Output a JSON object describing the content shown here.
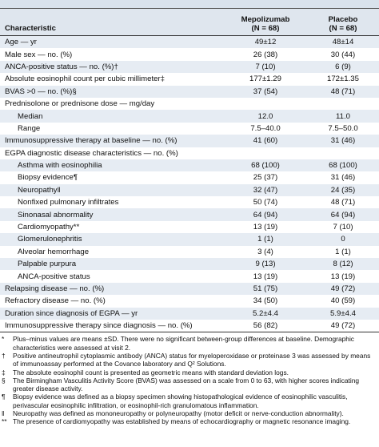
{
  "header": {
    "columns": [
      {
        "name": "Characteristic"
      },
      {
        "name": "Mepolizumab",
        "n": "(N = 68)"
      },
      {
        "name": "Placebo",
        "n": "(N = 68)"
      }
    ]
  },
  "rows": [
    {
      "label": "Age — yr",
      "values": [
        "49±12",
        "48±14"
      ]
    },
    {
      "label": "Male sex — no. (%)",
      "values": [
        "26 (38)",
        "30 (44)"
      ]
    },
    {
      "label": "ANCA-positive status — no. (%)†",
      "values": [
        "7 (10)",
        "6 (9)"
      ]
    },
    {
      "label": "Absolute eosinophil count per cubic millimeter‡",
      "values": [
        "177±1.29",
        "172±1.35"
      ]
    },
    {
      "label": "BVAS >0 — no. (%)§",
      "values": [
        "37 (54)",
        "48 (71)"
      ]
    },
    {
      "label": "Prednisolone or prednisone dose — mg/day",
      "items": [
        {
          "label": "Median",
          "values": [
            "12.0",
            "11.0"
          ]
        },
        {
          "label": "Range",
          "values": [
            "7.5–40.0",
            "7.5–50.0"
          ]
        }
      ]
    },
    {
      "label": "Immunosuppressive therapy at baseline — no. (%)",
      "values": [
        "41 (60)",
        "31 (46)"
      ]
    },
    {
      "label": "EGPA diagnostic disease characteristics — no. (%)",
      "items": [
        {
          "label": "Asthma with eosinophilia",
          "values": [
            "68 (100)",
            "68 (100)"
          ]
        },
        {
          "label": "Biopsy evidence¶",
          "values": [
            "25 (37)",
            "31 (46)"
          ]
        },
        {
          "label": "Neuropathy‖",
          "values": [
            "32 (47)",
            "24 (35)"
          ]
        },
        {
          "label": "Nonfixed pulmonary infiltrates",
          "values": [
            "50 (74)",
            "48 (71)"
          ]
        },
        {
          "label": "Sinonasal abnormality",
          "values": [
            "64 (94)",
            "64 (94)"
          ]
        },
        {
          "label": "Cardiomyopathy**",
          "values": [
            "13 (19)",
            "7 (10)"
          ]
        },
        {
          "label": "Glomerulonephritis",
          "values": [
            "1 (1)",
            "0"
          ]
        },
        {
          "label": "Alveolar hemorrhage",
          "values": [
            "3 (4)",
            "1 (1)"
          ]
        },
        {
          "label": "Palpable purpura",
          "values": [
            "9 (13)",
            "8 (12)"
          ]
        },
        {
          "label": "ANCA-positive status",
          "values": [
            "13 (19)",
            "13 (19)"
          ]
        }
      ]
    },
    {
      "label": "Relapsing disease — no. (%)",
      "values": [
        "51 (75)",
        "49 (72)"
      ]
    },
    {
      "label": "Refractory disease — no. (%)",
      "values": [
        "34 (50)",
        "40 (59)"
      ]
    },
    {
      "label": "Duration since diagnosis of EGPA — yr",
      "values": [
        "5.2±4.4",
        "5.9±4.4"
      ]
    },
    {
      "label": "Immunosuppressive therapy since diagnosis — no. (%)",
      "values": [
        "56 (82)",
        "49 (72)"
      ]
    }
  ],
  "footnotes": [
    {
      "symbol": "*",
      "text": "Plus–minus values are means ±SD. There were no significant between-group differences at baseline. Demographic characteristics were assessed at visit 2."
    },
    {
      "symbol": "†",
      "text": "Positive antineutrophil cytoplasmic antibody (ANCA) status for myeloperoxidase or proteinase 3 was assessed by means of immunoassay performed at the Covance laboratory and Q² Solutions."
    },
    {
      "symbol": "‡",
      "text": "The absolute eosinophil count is presented as geometric means with standard deviation logs."
    },
    {
      "symbol": "§",
      "text": "The Birmingham Vasculitis Activity Score (BVAS) was assessed on a scale from 0 to 63, with higher scores indicating greater disease activity."
    },
    {
      "symbol": "¶",
      "text": "Biopsy evidence was defined as a biopsy specimen showing histopathological evidence of eosinophilic vasculitis, perivascular eosinophilic infiltration, or eosinophil-rich granulomatous inflammation."
    },
    {
      "symbol": "‖",
      "text": "Neuropathy was defined as mononeuropathy or polyneuropathy (motor deficit or nerve-conduction abnormality)."
    },
    {
      "symbol": "**",
      "text": "The presence of cardiomyopathy was established by means of echocardiography or magnetic resonance imaging."
    }
  ]
}
